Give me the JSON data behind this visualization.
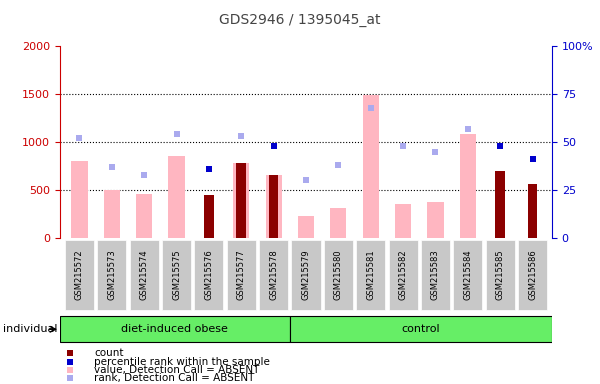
{
  "title": "GDS2946 / 1395045_at",
  "samples": [
    "GSM215572",
    "GSM215573",
    "GSM215574",
    "GSM215575",
    "GSM215576",
    "GSM215577",
    "GSM215578",
    "GSM215579",
    "GSM215580",
    "GSM215581",
    "GSM215582",
    "GSM215583",
    "GSM215584",
    "GSM215585",
    "GSM215586"
  ],
  "n_obese": 7,
  "n_control": 8,
  "value_absent": [
    800,
    500,
    460,
    855,
    null,
    780,
    660,
    230,
    310,
    1490,
    350,
    380,
    1085,
    null,
    null
  ],
  "rank_absent_pct": [
    52,
    37,
    33,
    54,
    null,
    53,
    null,
    30,
    38,
    68,
    48,
    45,
    57,
    null,
    null
  ],
  "count": [
    null,
    null,
    null,
    null,
    450,
    780,
    660,
    null,
    null,
    null,
    null,
    null,
    null,
    700,
    560
  ],
  "percentile_rank_pct": [
    null,
    null,
    null,
    null,
    36,
    null,
    48,
    null,
    null,
    null,
    null,
    null,
    null,
    48,
    41
  ],
  "ylim_left": [
    0,
    2000
  ],
  "ylim_right": [
    0,
    100
  ],
  "yticks_left": [
    0,
    500,
    1000,
    1500,
    2000
  ],
  "yticks_right_vals": [
    0,
    25,
    50,
    75,
    100
  ],
  "yticks_right_labels": [
    "0",
    "25",
    "50",
    "75",
    "100%"
  ],
  "bar_color_value": "#FFB6C1",
  "bar_color_count": "#8B0000",
  "marker_color_rank_absent": "#AAAAEE",
  "marker_color_percentile": "#0000CC",
  "grid_color": "black",
  "plot_bg": "#FFFFFF",
  "fig_bg": "#FFFFFF",
  "xlabel_bg": "#C8C8C8",
  "group_color": "#66EE66",
  "title_color": "#444444",
  "left_axis_color": "#CC0000",
  "right_axis_color": "#0000CC"
}
